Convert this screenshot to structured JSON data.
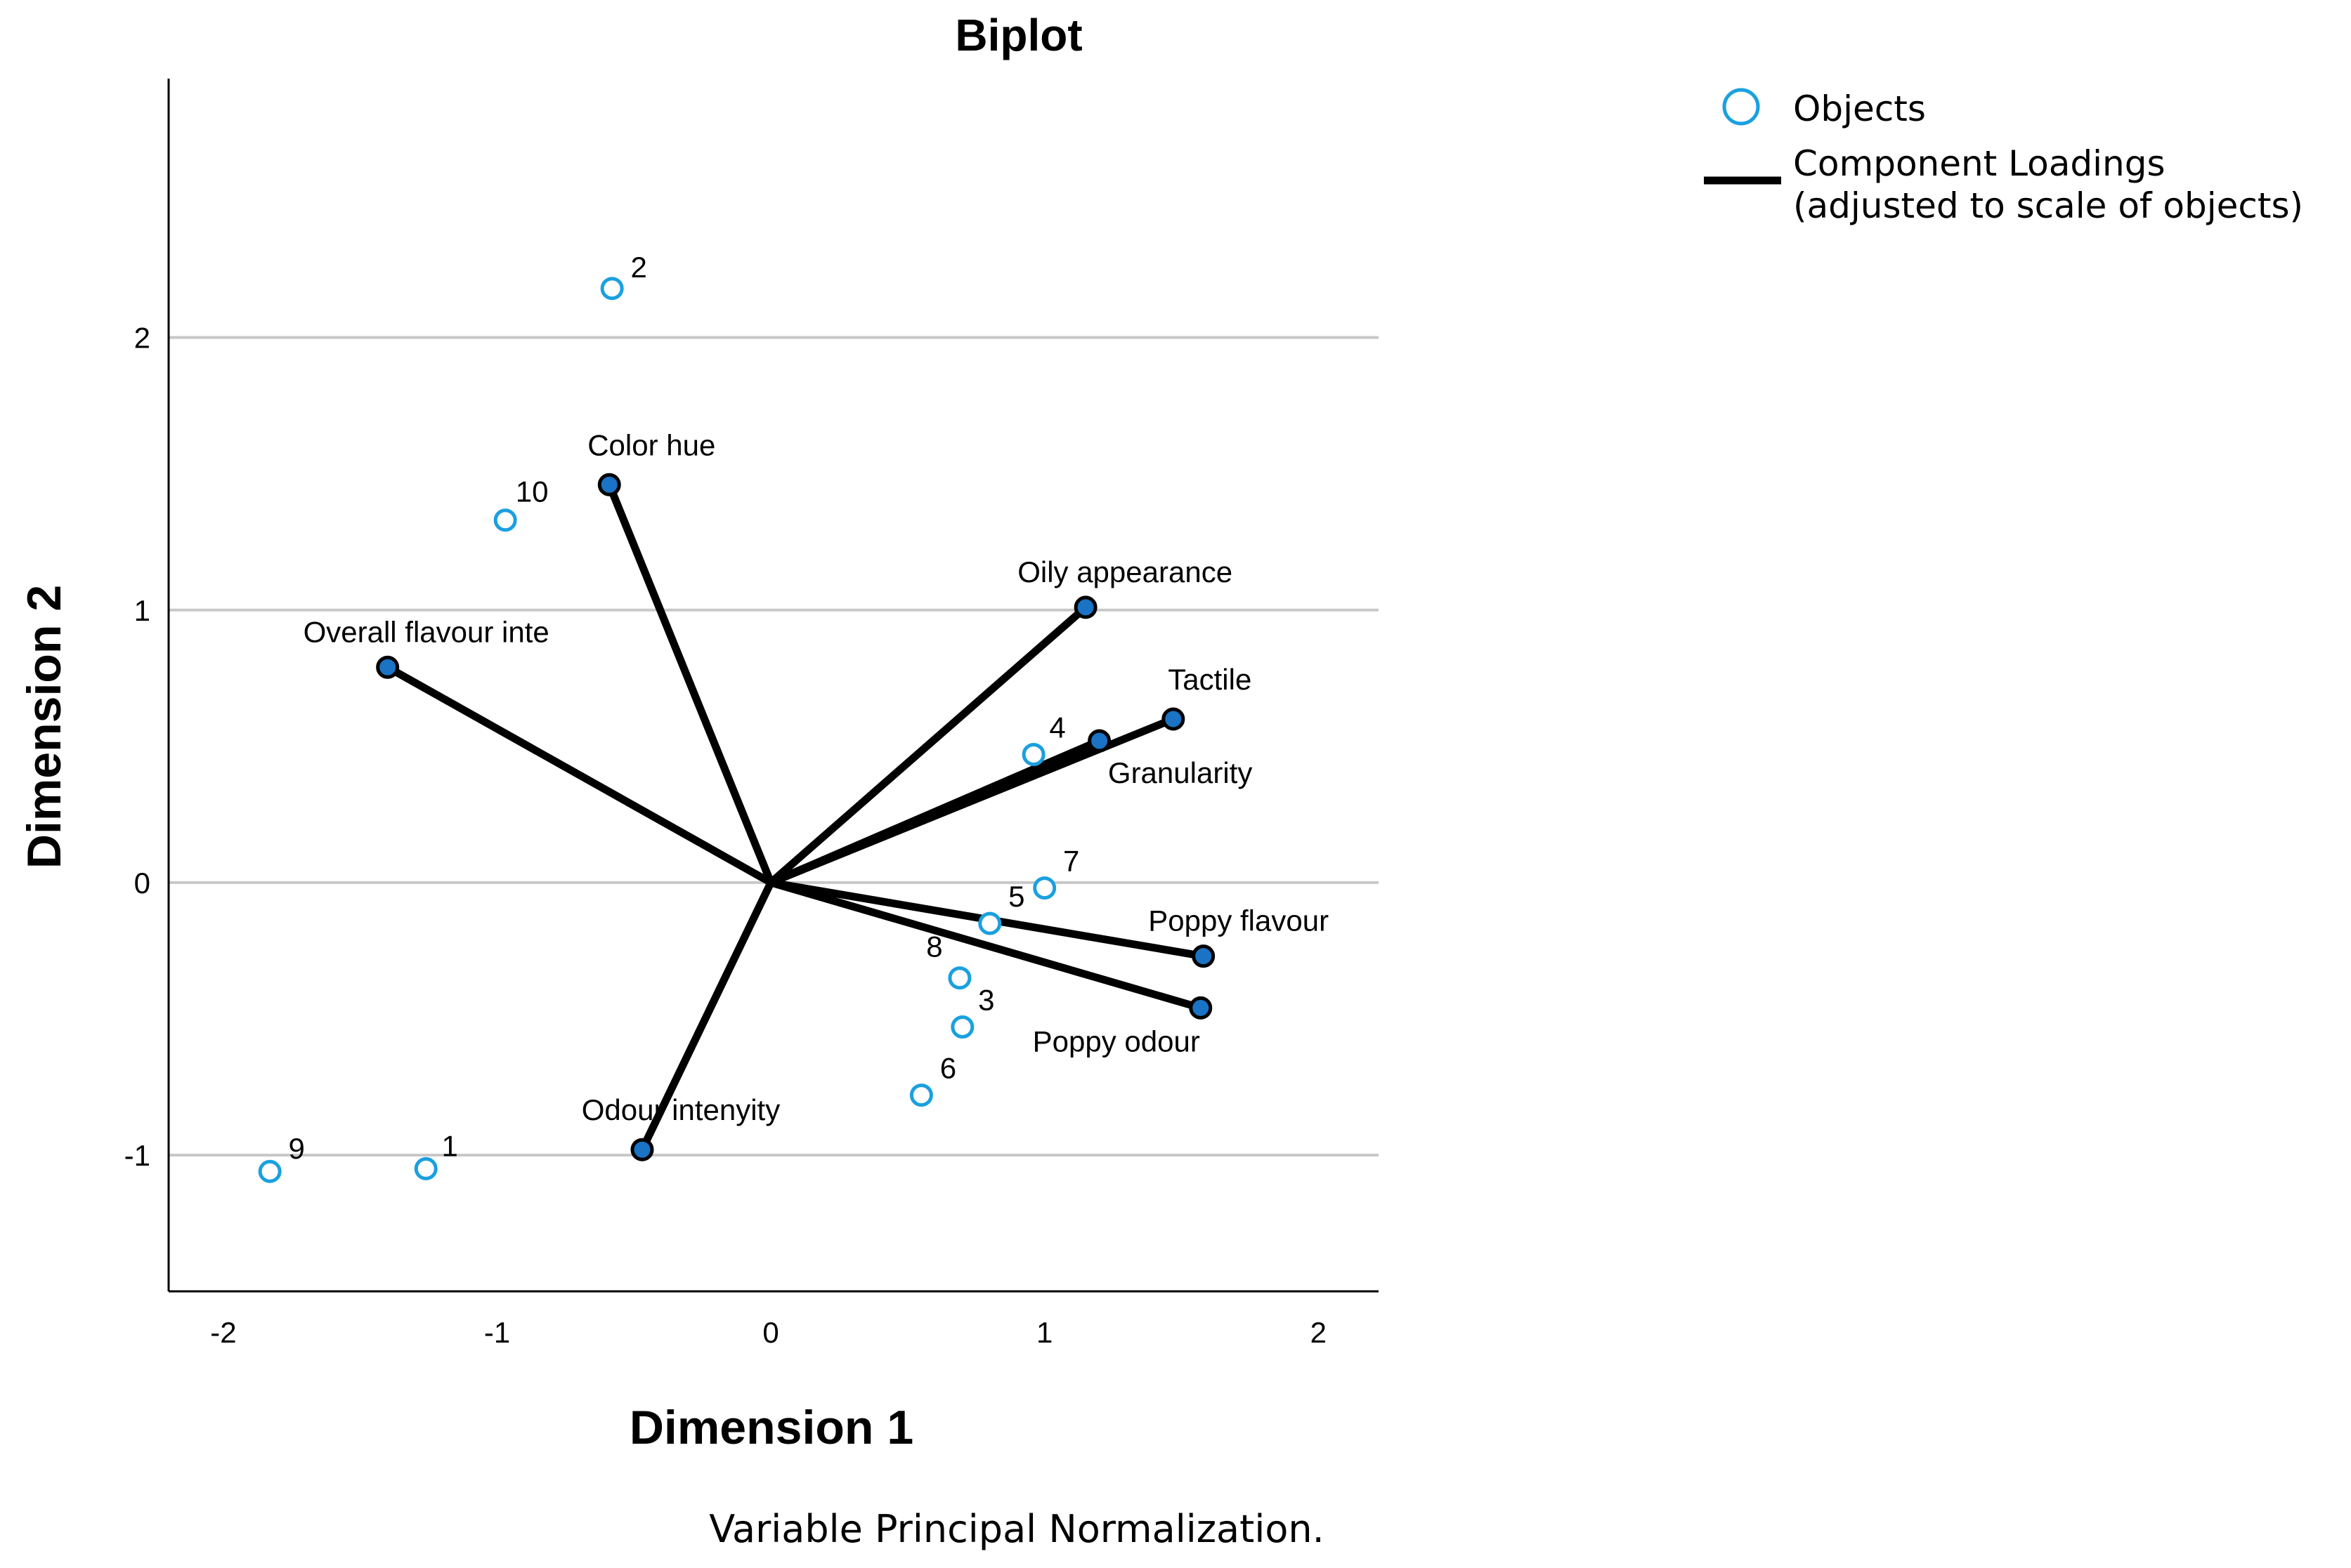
{
  "chart_data": {
    "type": "scatter",
    "title": "Biplot",
    "xlabel": "Dimension 1",
    "ylabel": "Dimension 2",
    "xlim": [
      -2.2,
      2.22
    ],
    "ylim": [
      -1.5,
      2.95
    ],
    "xticks": [
      -2,
      -1,
      0,
      1,
      2
    ],
    "xtick_labels": [
      "-2",
      "-1",
      "0",
      "1",
      "2"
    ],
    "yticks": [
      -1,
      0,
      1,
      2
    ],
    "ytick_labels": [
      "-1",
      "0",
      "1",
      "2"
    ],
    "grid": "horizontal",
    "footnote": "Variable Principal Normalization.",
    "legend": {
      "position": "top-right",
      "objects_label": "Objects",
      "loadings_label_line1": "Component Loadings",
      "loadings_label_line2": "(adjusted to scale of objects)"
    },
    "series": [
      {
        "name": "Objects",
        "kind": "points",
        "color": "#1aa0e0",
        "points": [
          {
            "label": "1",
            "x": -1.26,
            "y": -1.05
          },
          {
            "label": "2",
            "x": -0.58,
            "y": 2.18
          },
          {
            "label": "3",
            "x": 0.7,
            "y": -0.53
          },
          {
            "label": "4",
            "x": 0.96,
            "y": 0.47
          },
          {
            "label": "5",
            "x": 0.8,
            "y": -0.15
          },
          {
            "label": "6",
            "x": 0.55,
            "y": -0.78
          },
          {
            "label": "7",
            "x": 1.0,
            "y": -0.02
          },
          {
            "label": "8",
            "x": 0.69,
            "y": -0.35
          },
          {
            "label": "9",
            "x": -1.83,
            "y": -1.06
          },
          {
            "label": "10",
            "x": -0.97,
            "y": 1.33
          }
        ]
      },
      {
        "name": "Component Loadings",
        "kind": "vectors",
        "color": "#000000",
        "marker_color": "#1a73c4",
        "vectors": [
          {
            "label": "Color hue",
            "x": -0.59,
            "y": 1.46
          },
          {
            "label": "Oily appearance",
            "x": 1.15,
            "y": 1.01
          },
          {
            "label": "Overall flavour inte",
            "x": -1.4,
            "y": 0.79
          },
          {
            "label": "Tactile",
            "x": 1.47,
            "y": 0.6
          },
          {
            "label": "Granularity",
            "x": 1.2,
            "y": 0.52
          },
          {
            "label": "Poppy flavour",
            "x": 1.58,
            "y": -0.27
          },
          {
            "label": "Poppy odour",
            "x": 1.57,
            "y": -0.46
          },
          {
            "label": "Odour intenyity",
            "x": -0.47,
            "y": -0.98
          }
        ]
      }
    ]
  }
}
